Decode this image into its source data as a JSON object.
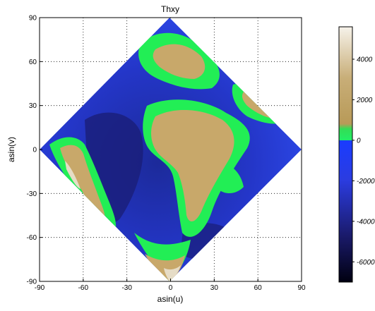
{
  "chart_data": {
    "type": "heatmap",
    "title": "Thxy",
    "xlabel": "asin(u)",
    "ylabel": "asin(v)",
    "xlim": [
      -90,
      90
    ],
    "ylim": [
      -90,
      90
    ],
    "xticks": [
      "-90",
      "-60",
      "-30",
      "0",
      "30",
      "60",
      "90"
    ],
    "yticks": [
      "90",
      "60",
      "30",
      "0",
      "-30",
      "-60",
      "-90"
    ],
    "grid": true,
    "grid_style": "dotted",
    "projection_shape": "diamond",
    "colorbar": {
      "placement": "right",
      "min": -7000,
      "max": 5600,
      "ticks": [
        "4000",
        "2000",
        "0",
        "-2000",
        "-4000",
        "-6000"
      ],
      "tick_values": [
        4000,
        2000,
        0,
        -2000,
        -4000,
        -6000
      ],
      "colors": {
        "deep": "#0a0a2e",
        "ocean": "#2a2ad0",
        "shallow": "#1a4aff",
        "coast": "#22ee55",
        "land": "#c8a86a",
        "high": "#f2ece0"
      }
    }
  }
}
